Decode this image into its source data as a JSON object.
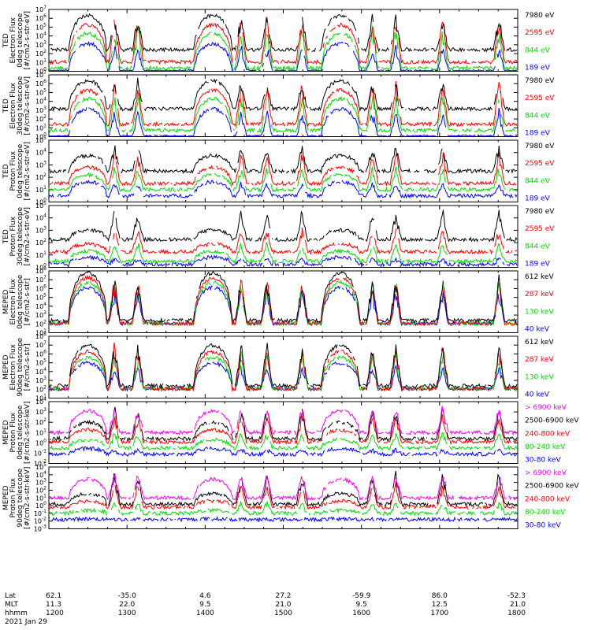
{
  "chart_data": {
    "type": "line",
    "ylog": true,
    "xrange_hhmm": [
      "1200",
      "1800"
    ],
    "panels": [
      {
        "ylabel": [
          "TED",
          "Electron Flux",
          "0deg telescope",
          "[#/cm2-s-str-eV]"
        ],
        "ylim_exp": [
          0,
          7
        ],
        "legend": [
          {
            "label": "7980 eV",
            "color": "#000000"
          },
          {
            "label": "2595 eV",
            "color": "#ff0000"
          },
          {
            "label": "844 eV",
            "color": "#00dd00"
          },
          {
            "label": "189 eV",
            "color": "#0000ff"
          }
        ]
      },
      {
        "ylabel": [
          "TED",
          "Electron Flux",
          "30deg telescope",
          "[#/cm2-s-str-eV]"
        ],
        "ylim_exp": [
          0,
          7
        ],
        "legend": [
          {
            "label": "7980 eV",
            "color": "#000000"
          },
          {
            "label": "2595 eV",
            "color": "#ff0000"
          },
          {
            "label": "844 eV",
            "color": "#00dd00"
          },
          {
            "label": "189 eV",
            "color": "#0000ff"
          }
        ]
      },
      {
        "ylabel": [
          "TED",
          "Proton Flux",
          "0deg telescope",
          "[#/cm2-s-str-eV]"
        ],
        "ylim_exp": [
          0,
          5
        ],
        "legend": [
          {
            "label": "7980 eV",
            "color": "#000000"
          },
          {
            "label": "2595 eV",
            "color": "#ff0000"
          },
          {
            "label": "844 eV",
            "color": "#00dd00"
          },
          {
            "label": "189 eV",
            "color": "#0000ff"
          }
        ]
      },
      {
        "ylabel": [
          "TED",
          "Proton Flux",
          "30deg telescope",
          "[#/cm2-s-str-eV]"
        ],
        "ylim_exp": [
          0,
          5
        ],
        "legend": [
          {
            "label": "7980 eV",
            "color": "#000000"
          },
          {
            "label": "2595 eV",
            "color": "#ff0000"
          },
          {
            "label": "844 eV",
            "color": "#00dd00"
          },
          {
            "label": "189 eV",
            "color": "#0000ff"
          }
        ]
      },
      {
        "ylabel": [
          "MEPED",
          "Electron Flux",
          "0deg telescope",
          "[#/cm2-s-str]"
        ],
        "ylim_exp": [
          1,
          8
        ],
        "legend": [
          {
            "label": "612 keV",
            "color": "#000000"
          },
          {
            "label": "287 keV",
            "color": "#ff0000"
          },
          {
            "label": "130 keV",
            "color": "#00dd00"
          },
          {
            "label": "40 keV",
            "color": "#0000ff"
          }
        ]
      },
      {
        "ylabel": [
          "MEPED",
          "Electron Flux",
          "90deg telescope",
          "[#/cm2-s-str]"
        ],
        "ylim_exp": [
          1,
          8
        ],
        "legend": [
          {
            "label": "612 keV",
            "color": "#000000"
          },
          {
            "label": "287 keV",
            "color": "#ff0000"
          },
          {
            "label": "130 keV",
            "color": "#00dd00"
          },
          {
            "label": "40 keV",
            "color": "#0000ff"
          }
        ]
      },
      {
        "ylabel": [
          "MEPED",
          "Proton Flux",
          "0deg telescope",
          "[#/cm2-s-str-keV]"
        ],
        "ylim_exp": [
          -2,
          4
        ],
        "legend": [
          {
            "label": "> 6900 keV",
            "color": "#ff00ff"
          },
          {
            "label": "2500-6900 keV",
            "color": "#000000"
          },
          {
            "label": "240-800 keV",
            "color": "#ff0000"
          },
          {
            "label": "80-240 keV",
            "color": "#00dd00"
          },
          {
            "label": "30-80 keV",
            "color": "#0000ff"
          }
        ]
      },
      {
        "ylabel": [
          "MEPED",
          "Proton Flux",
          "90deg telescope",
          "[#/cm2-s-str-keV]"
        ],
        "ylim_exp": [
          -3,
          5
        ],
        "legend": [
          {
            "label": "> 6900 keV",
            "color": "#ff00ff"
          },
          {
            "label": "2500-6900 keV",
            "color": "#000000"
          },
          {
            "label": "240-800 keV",
            "color": "#ff0000"
          },
          {
            "label": "80-240 keV",
            "color": "#00dd00"
          },
          {
            "label": "30-80 keV",
            "color": "#0000ff"
          }
        ]
      }
    ],
    "x_axis": {
      "row_labels": [
        "Lat",
        "MLT",
        "hhmm",
        "2021 Jan 29"
      ],
      "ticks": [
        {
          "lat": "62.1",
          "mlt": "11.3",
          "hhmm": "1200"
        },
        {
          "lat": "-35.0",
          "mlt": "22.0",
          "hhmm": "1300"
        },
        {
          "lat": "4.6",
          "mlt": "9.5",
          "hhmm": "1400"
        },
        {
          "lat": "27.2",
          "mlt": "21.0",
          "hhmm": "1500"
        },
        {
          "lat": "-59.9",
          "mlt": "9.5",
          "hhmm": "1600"
        },
        {
          "lat": "86.0",
          "mlt": "12.5",
          "hhmm": "1700"
        },
        {
          "lat": "-52.3",
          "mlt": "21.0",
          "hhmm": "1800"
        }
      ]
    }
  }
}
